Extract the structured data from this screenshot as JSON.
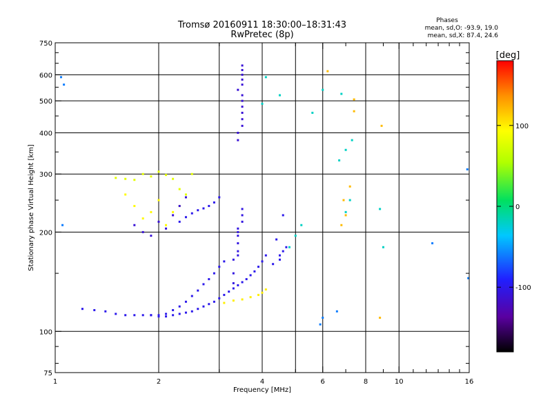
{
  "chart_data": {
    "type": "scatter",
    "title": "Tromsø 20160911 18:30:00–18:31:43",
    "subtitle": "RwPretec (8p)",
    "xlabel": "Frequency [MHz]",
    "ylabel": "Stationary phase Virtual Height [km]",
    "x_scale": "log",
    "y_scale": "log",
    "xlim": [
      1,
      16
    ],
    "ylim": [
      75,
      750
    ],
    "x_ticks": [
      1,
      2,
      4,
      6,
      8,
      10,
      16
    ],
    "y_ticks": [
      75,
      100,
      200,
      300,
      400,
      500,
      600,
      750
    ],
    "grid": true,
    "stats": {
      "heading": "Phases",
      "line_o": "mean, sd,O: -93.9, 19.0",
      "line_x": "mean, sd,X:  87.4, 24.6"
    },
    "colorbar": {
      "label": "[deg]",
      "ticks": [
        100,
        0,
        -100
      ],
      "range": [
        -180,
        180
      ]
    },
    "series": [
      {
        "x": [
          1.2,
          1.3,
          1.4,
          1.5,
          1.6,
          1.7,
          1.8,
          1.9,
          2.0,
          2.1,
          2.2,
          2.3,
          2.4,
          2.5,
          2.6,
          2.7,
          2.8,
          2.9,
          3.0,
          3.1,
          3.2,
          3.3,
          3.4,
          3.5,
          3.6,
          3.7,
          3.8,
          3.9,
          4.0,
          4.1
        ],
        "y": [
          117,
          116,
          115,
          113,
          112,
          112,
          112,
          112,
          111,
          111,
          112,
          113,
          114,
          115,
          117,
          119,
          121,
          123,
          126,
          129,
          132,
          135,
          138,
          141,
          144,
          148,
          152,
          157,
          163,
          170
        ],
        "phase": -100
      },
      {
        "x": [
          1.9,
          2.0,
          2.1,
          2.2,
          2.3,
          2.4,
          2.5,
          2.6,
          2.7,
          2.8,
          2.9,
          3.0,
          3.1
        ],
        "y": [
          112,
          112,
          113,
          116,
          119,
          123,
          128,
          133,
          139,
          144,
          150,
          157,
          163
        ],
        "phase": -100
      },
      {
        "x": [
          1.5,
          1.6,
          1.7,
          1.8,
          1.9,
          2.0,
          2.1,
          2.2,
          2.3,
          2.4,
          2.5
        ],
        "y": [
          292,
          290,
          288,
          300,
          295,
          305,
          298,
          290,
          270,
          260,
          300
        ],
        "phase": 80
      },
      {
        "x": [
          1.6,
          1.7,
          1.8,
          1.9,
          2.0,
          2.1,
          2.2,
          2.3
        ],
        "y": [
          260,
          240,
          220,
          230,
          250,
          210,
          230,
          240
        ],
        "phase": 95
      },
      {
        "x": [
          1.7,
          1.8,
          1.9,
          2.0,
          2.1,
          2.2,
          2.3,
          2.4
        ],
        "y": [
          210,
          200,
          195,
          215,
          205,
          225,
          240,
          255
        ],
        "phase": -110
      },
      {
        "x": [
          2.3,
          2.4,
          2.5,
          2.6,
          2.7,
          2.8,
          2.9,
          3.0
        ],
        "y": [
          215,
          222,
          228,
          233,
          236,
          240,
          246,
          255
        ],
        "phase": -100
      },
      {
        "x": [
          3.4,
          3.4,
          3.5,
          3.5,
          3.5,
          3.5,
          3.5,
          3.5,
          3.4,
          3.5,
          3.5,
          3.5,
          3.5,
          3.5
        ],
        "y": [
          380,
          400,
          420,
          440,
          460,
          480,
          500,
          520,
          540,
          560,
          580,
          600,
          620,
          640
        ],
        "phase": -110
      },
      {
        "x": [
          3.3,
          3.3,
          3.4,
          3.4,
          3.4,
          3.4,
          3.5,
          3.5,
          3.5,
          3.4,
          3.4,
          3.3
        ],
        "y": [
          150,
          165,
          175,
          185,
          195,
          205,
          215,
          225,
          235,
          200,
          170,
          140
        ],
        "phase": -105
      },
      {
        "x": [
          3.1,
          3.3,
          3.5,
          3.7,
          3.9,
          4.0,
          4.1
        ],
        "y": [
          122,
          124,
          125,
          127,
          129,
          131,
          134
        ],
        "phase": 100
      },
      {
        "x": [
          4.3,
          4.5,
          4.6,
          4.7,
          4.6,
          4.4,
          4.5
        ],
        "y": [
          160,
          170,
          175,
          180,
          225,
          190,
          165
        ],
        "phase": -100
      },
      {
        "x": [
          5.0,
          5.2,
          4.8,
          4.1,
          4.0,
          4.5,
          5.6,
          6.0,
          6.8,
          7.0,
          7.2,
          6.7,
          7.0,
          7.3,
          8.8,
          9.0
        ],
        "y": [
          195,
          210,
          180,
          590,
          490,
          520,
          460,
          540,
          525,
          230,
          250,
          330,
          355,
          380,
          235,
          180
        ],
        "phase": -20
      },
      {
        "x": [
          6.2,
          6.8,
          7.2,
          7.4,
          7.4,
          6.9,
          7.0,
          8.9,
          8.8
        ],
        "y": [
          615,
          210,
          275,
          465,
          505,
          250,
          225,
          420,
          110
        ],
        "phase": 120
      },
      {
        "x": [
          1.05,
          1.06,
          1.04,
          12.5,
          15.8,
          15.9,
          6.0,
          6.6,
          5.9
        ],
        "y": [
          210,
          560,
          590,
          185,
          310,
          145,
          110,
          115,
          105
        ],
        "phase": -60
      }
    ]
  }
}
